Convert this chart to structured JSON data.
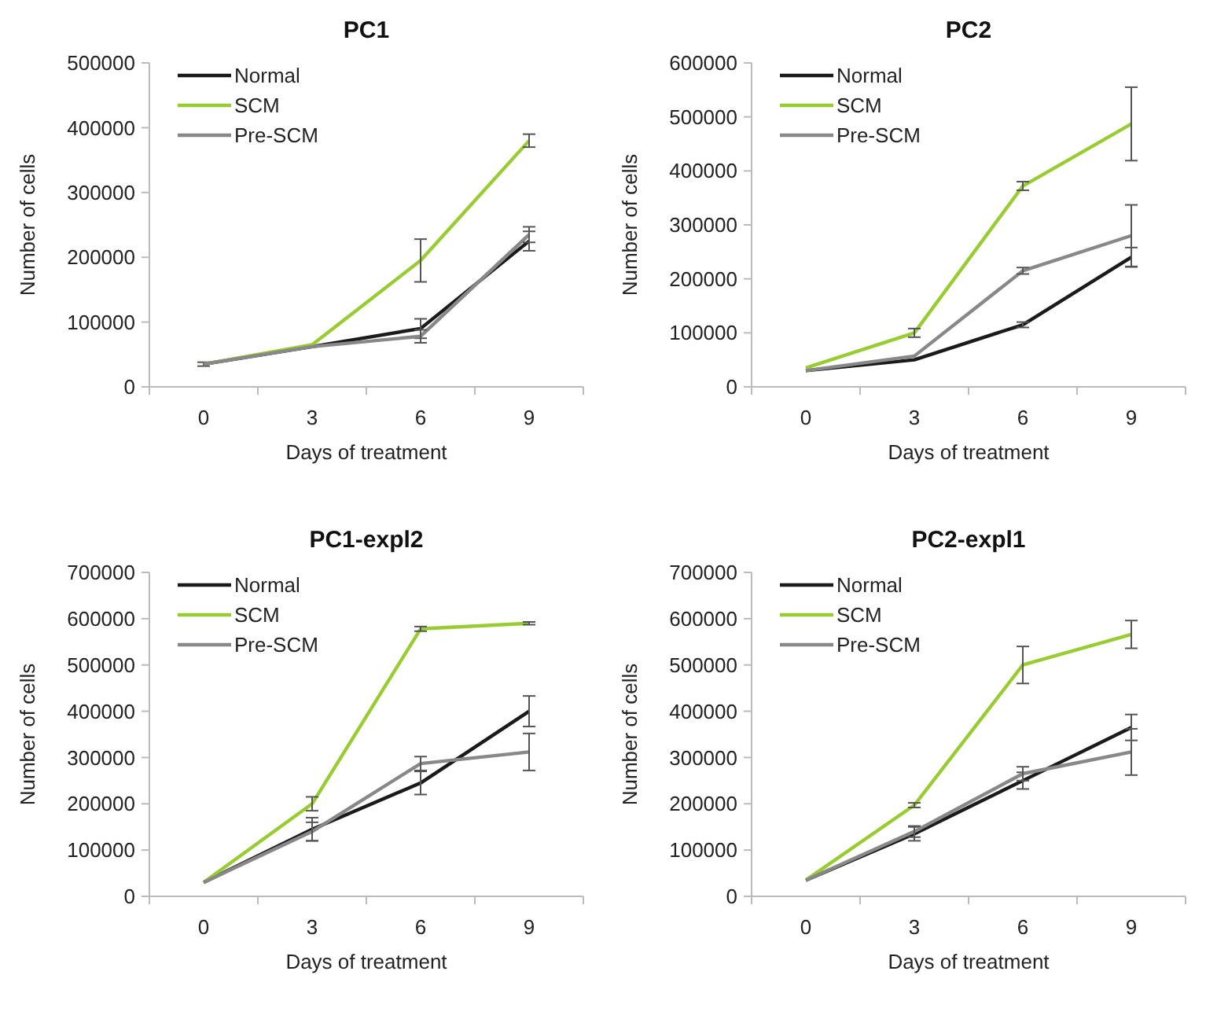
{
  "chart_data": [
    {
      "type": "line",
      "title": "PC1",
      "xlabel": "Days of treatment",
      "ylabel": "Number of cells",
      "categories": [
        "0",
        "3",
        "6",
        "9"
      ],
      "ylim": [
        0,
        500000
      ],
      "yticks": [
        0,
        100000,
        200000,
        300000,
        400000,
        500000
      ],
      "legend": "top left",
      "series": [
        {
          "name": "Normal",
          "color": "#1a1a1a",
          "values": [
            35000,
            62000,
            90000,
            225000
          ],
          "errors": [
            3000,
            null,
            15000,
            15000
          ]
        },
        {
          "name": "SCM",
          "color": "#99cc33",
          "values": [
            35000,
            65000,
            195000,
            380000
          ],
          "errors": [
            null,
            null,
            33000,
            10000
          ]
        },
        {
          "name": "Pre-SCM",
          "color": "#888888",
          "values": [
            35000,
            62000,
            78000,
            235000
          ],
          "errors": [
            null,
            null,
            10000,
            12000
          ]
        }
      ]
    },
    {
      "type": "line",
      "title": "PC2",
      "xlabel": "Days of treatment",
      "ylabel": "Number of cells",
      "categories": [
        "0",
        "3",
        "6",
        "9"
      ],
      "ylim": [
        0,
        600000
      ],
      "yticks": [
        0,
        100000,
        200000,
        300000,
        400000,
        500000,
        600000
      ],
      "legend": "top left",
      "series": [
        {
          "name": "Normal",
          "color": "#1a1a1a",
          "values": [
            30000,
            50000,
            115000,
            240000
          ],
          "errors": [
            null,
            null,
            5000,
            18000
          ]
        },
        {
          "name": "SCM",
          "color": "#99cc33",
          "values": [
            35000,
            100000,
            372000,
            487000
          ],
          "errors": [
            null,
            8000,
            8000,
            68000
          ]
        },
        {
          "name": "Pre-SCM",
          "color": "#888888",
          "values": [
            30000,
            57000,
            215000,
            280000
          ],
          "errors": [
            null,
            null,
            6000,
            57000
          ]
        }
      ]
    },
    {
      "type": "line",
      "title": "PC1-expl2",
      "xlabel": "Days of treatment",
      "ylabel": "Number of cells",
      "categories": [
        "0",
        "3",
        "6",
        "9"
      ],
      "ylim": [
        0,
        700000
      ],
      "yticks": [
        0,
        100000,
        200000,
        300000,
        400000,
        500000,
        600000,
        700000
      ],
      "legend": "top left",
      "series": [
        {
          "name": "Normal",
          "color": "#1a1a1a",
          "values": [
            30000,
            145000,
            245000,
            400000
          ],
          "errors": [
            null,
            25000,
            25000,
            33000
          ]
        },
        {
          "name": "SCM",
          "color": "#99cc33",
          "values": [
            30000,
            200000,
            578000,
            590000
          ],
          "errors": [
            null,
            15000,
            5000,
            3000
          ]
        },
        {
          "name": "Pre-SCM",
          "color": "#888888",
          "values": [
            30000,
            140000,
            287000,
            312000
          ],
          "errors": [
            null,
            20000,
            15000,
            40000
          ]
        }
      ]
    },
    {
      "type": "line",
      "title": "PC2-expl1",
      "xlabel": "Days of treatment",
      "ylabel": "Number of cells",
      "categories": [
        "0",
        "3",
        "6",
        "9"
      ],
      "ylim": [
        0,
        700000
      ],
      "yticks": [
        0,
        100000,
        200000,
        300000,
        400000,
        500000,
        600000,
        700000
      ],
      "legend": "top left",
      "series": [
        {
          "name": "Normal",
          "color": "#1a1a1a",
          "values": [
            35000,
            135000,
            250000,
            365000
          ],
          "errors": [
            null,
            15000,
            18000,
            28000
          ]
        },
        {
          "name": "SCM",
          "color": "#99cc33",
          "values": [
            35000,
            197000,
            500000,
            566000
          ],
          "errors": [
            null,
            5000,
            40000,
            30000
          ]
        },
        {
          "name": "Pre-SCM",
          "color": "#888888",
          "values": [
            35000,
            140000,
            265000,
            312000
          ],
          "errors": [
            null,
            12000,
            15000,
            50000
          ]
        }
      ]
    }
  ]
}
